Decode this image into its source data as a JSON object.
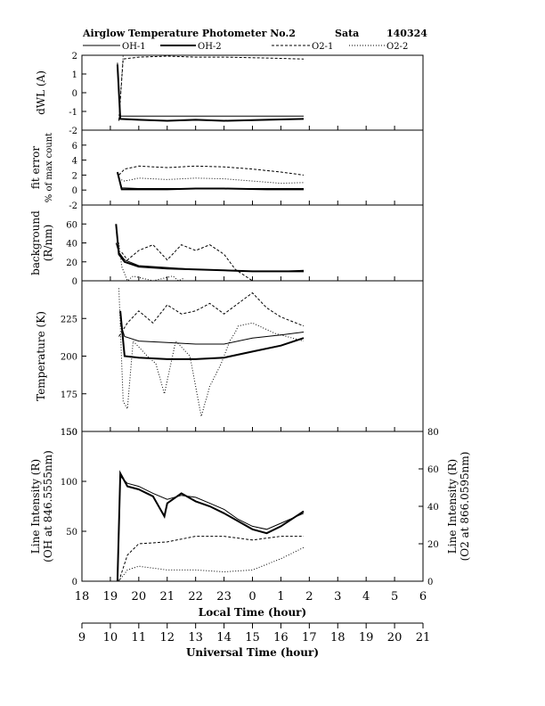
{
  "header": {
    "title": "Airglow Temperature Photometer No.2",
    "site": "Sata",
    "date": "140324"
  },
  "legend": [
    {
      "name": "OH-1",
      "style": "thin-solid"
    },
    {
      "name": "OH-2",
      "style": "thick-solid"
    },
    {
      "name": "O2-1",
      "style": "dashed"
    },
    {
      "name": "O2-2",
      "style": "dotted"
    }
  ],
  "chart_data": [
    {
      "type": "line",
      "ylabel": "dWL (A)",
      "ylim": [
        -2,
        2
      ],
      "yticks": [
        "-2",
        "-1",
        "0",
        "1",
        "2"
      ],
      "series": [
        {
          "name": "OH-1",
          "x": [
            19.25,
            19.35,
            20,
            21,
            22,
            23,
            0.5,
            1.8
          ],
          "y": [
            1.6,
            -1.25,
            -1.25,
            -1.25,
            -1.25,
            -1.25,
            -1.25,
            -1.25
          ]
        },
        {
          "name": "OH-2",
          "x": [
            19.25,
            19.35,
            20,
            21,
            22,
            23,
            0.5,
            1.8
          ],
          "y": [
            1.5,
            -1.4,
            -1.45,
            -1.5,
            -1.45,
            -1.5,
            -1.45,
            -1.4
          ]
        },
        {
          "name": "O2-1",
          "x": [
            19.3,
            19.45,
            20,
            21,
            22,
            23,
            0.5,
            1.8
          ],
          "y": [
            -1.5,
            1.8,
            1.9,
            1.95,
            1.9,
            1.9,
            1.85,
            1.8
          ]
        },
        {
          "name": "O2-2",
          "x": [
            19.3,
            19.45,
            20,
            21,
            22,
            23,
            0.5,
            1.8
          ],
          "y": [
            -1.5,
            2,
            2,
            2,
            2,
            2,
            2,
            2
          ]
        }
      ]
    },
    {
      "type": "line",
      "ylabel": [
        "fit error",
        "% of max count"
      ],
      "ylim": [
        -2,
        8
      ],
      "yticks": [
        "-2",
        "0",
        "2",
        "4",
        "6"
      ],
      "series": [
        {
          "name": "OH-1",
          "x": [
            19.25,
            19.4,
            20,
            21,
            22,
            23,
            0.5,
            1.8
          ],
          "y": [
            2.2,
            0.3,
            0.2,
            0.2,
            0.2,
            0.2,
            0.2,
            0.2
          ]
        },
        {
          "name": "OH-2",
          "x": [
            19.25,
            19.4,
            20,
            21,
            22,
            23,
            0.5,
            1.8
          ],
          "y": [
            2.4,
            0.1,
            0.1,
            0.1,
            0.2,
            0.2,
            0.1,
            0.1
          ]
        },
        {
          "name": "O2-1",
          "x": [
            19.3,
            19.5,
            20,
            21,
            22,
            23,
            0,
            1,
            1.8
          ],
          "y": [
            2,
            2.8,
            3.2,
            3,
            3.2,
            3.1,
            2.8,
            2.4,
            2
          ]
        },
        {
          "name": "O2-2",
          "x": [
            19.3,
            19.5,
            20,
            21,
            22,
            23,
            0,
            1,
            1.8
          ],
          "y": [
            1.5,
            1.2,
            1.6,
            1.4,
            1.6,
            1.5,
            1.2,
            0.9,
            1
          ]
        }
      ]
    },
    {
      "type": "line",
      "ylabel": [
        "background",
        "(R/nm)"
      ],
      "ylim": [
        0,
        80
      ],
      "yticks": [
        "0",
        "20",
        "40",
        "60"
      ],
      "series": [
        {
          "name": "OH-1",
          "x": [
            19.2,
            19.3,
            19.5,
            20,
            21,
            22,
            23,
            0,
            1,
            1.8
          ],
          "y": [
            40,
            30,
            22,
            16,
            14,
            12,
            11,
            10,
            10,
            11
          ]
        },
        {
          "name": "OH-2",
          "x": [
            19.2,
            19.3,
            19.5,
            20,
            21,
            22,
            23,
            0,
            1,
            1.8
          ],
          "y": [
            60,
            28,
            20,
            15,
            13,
            12,
            11,
            10,
            10,
            10
          ]
        },
        {
          "name": "O2-1",
          "x": [
            19.4,
            19.6,
            20,
            20.5,
            21,
            21.5,
            22,
            22.5,
            23,
            23.4,
            0
          ],
          "y": [
            30,
            22,
            32,
            38,
            22,
            38,
            32,
            38,
            28,
            12,
            0
          ]
        },
        {
          "name": "O2-2",
          "x": [
            19.3,
            19.4,
            19.6,
            19.8,
            20.5,
            21.2,
            21.4,
            21.6
          ],
          "y": [
            40,
            15,
            0,
            5,
            0,
            5,
            0,
            3
          ]
        }
      ]
    },
    {
      "type": "line",
      "ylabel": "Temperature (K)",
      "ylim": [
        150,
        250
      ],
      "yticks": [
        "150",
        "175",
        "200",
        "225"
      ],
      "series": [
        {
          "name": "OH-1",
          "x": [
            19.35,
            19.5,
            20,
            21,
            22,
            23,
            0,
            1,
            1.8
          ],
          "y": [
            222,
            213,
            210,
            209,
            208,
            208,
            212,
            214,
            216
          ]
        },
        {
          "name": "OH-2",
          "x": [
            19.35,
            19.5,
            20,
            21,
            22,
            23,
            0,
            1,
            1.8
          ],
          "y": [
            230,
            200,
            199,
            198,
            198,
            199,
            203,
            207,
            212
          ]
        },
        {
          "name": "O2-1",
          "x": [
            19.3,
            19.6,
            20,
            20.5,
            21,
            21.5,
            22,
            22.5,
            23,
            23.5,
            0,
            0.5,
            1,
            1.8
          ],
          "y": [
            213,
            222,
            230,
            222,
            234,
            228,
            230,
            235,
            228,
            235,
            242,
            232,
            226,
            220
          ]
        },
        {
          "name": "O2-2",
          "x": [
            19.3,
            19.45,
            19.6,
            19.8,
            20.3,
            20.6,
            20.9,
            21.3,
            21.8,
            22.2,
            22.5,
            22.9,
            23.2,
            23.4,
            23.5,
            0,
            0.8,
            1.8
          ],
          "y": [
            245,
            170,
            165,
            210,
            200,
            195,
            175,
            210,
            200,
            160,
            180,
            195,
            210,
            216,
            220,
            222,
            215,
            210
          ]
        }
      ]
    },
    {
      "type": "line",
      "ylabel": [
        "Line Intensity (R)",
        "(OH at 846.5555nm)"
      ],
      "ylim": [
        0,
        150
      ],
      "yticks": [
        "0",
        "50",
        "100",
        "150"
      ],
      "y2label": [
        "Line Intensity (R)",
        "(O2 at 866.0595nm)"
      ],
      "y2lim": [
        0,
        80
      ],
      "y2ticks": [
        "0",
        "20",
        "40",
        "60",
        "80"
      ],
      "series": [
        {
          "name": "OH-1",
          "axis": "left",
          "x": [
            19.25,
            19.35,
            19.6,
            20,
            20.5,
            21,
            21.5,
            22,
            22.5,
            23,
            23.5,
            0,
            0.5,
            1,
            1.8
          ],
          "y": [
            0,
            105,
            98,
            95,
            88,
            82,
            86,
            84,
            78,
            72,
            62,
            55,
            52,
            58,
            68
          ]
        },
        {
          "name": "OH-2",
          "axis": "left",
          "x": [
            19.25,
            19.35,
            19.6,
            20,
            20.5,
            20.9,
            21,
            21.5,
            22,
            22.5,
            23,
            23.5,
            0,
            0.5,
            1,
            1.8
          ],
          "y": [
            0,
            108,
            95,
            92,
            85,
            65,
            78,
            88,
            80,
            75,
            68,
            60,
            52,
            48,
            55,
            70
          ]
        },
        {
          "name": "O2-1",
          "axis": "right",
          "x": [
            19.3,
            19.6,
            20,
            21,
            22,
            23,
            0,
            1,
            1.8
          ],
          "y": [
            0,
            14,
            20,
            21,
            24,
            24,
            22,
            24,
            24
          ]
        },
        {
          "name": "O2-2",
          "axis": "right",
          "x": [
            19.3,
            19.6,
            20,
            21,
            22,
            23,
            0,
            1,
            1.8
          ],
          "y": [
            0,
            6,
            8,
            6,
            6,
            5,
            6,
            12,
            18
          ]
        }
      ]
    }
  ],
  "x_axis": {
    "local_label": "Local Time (hour)",
    "local_ticks": [
      "18",
      "19",
      "20",
      "21",
      "22",
      "23",
      "0",
      "1",
      "2",
      "3",
      "4",
      "5",
      "6"
    ],
    "ut_label": "Universal Time (hour)",
    "ut_ticks": [
      "9",
      "10",
      "11",
      "12",
      "13",
      "14",
      "15",
      "16",
      "17",
      "18",
      "19",
      "20",
      "21"
    ]
  }
}
